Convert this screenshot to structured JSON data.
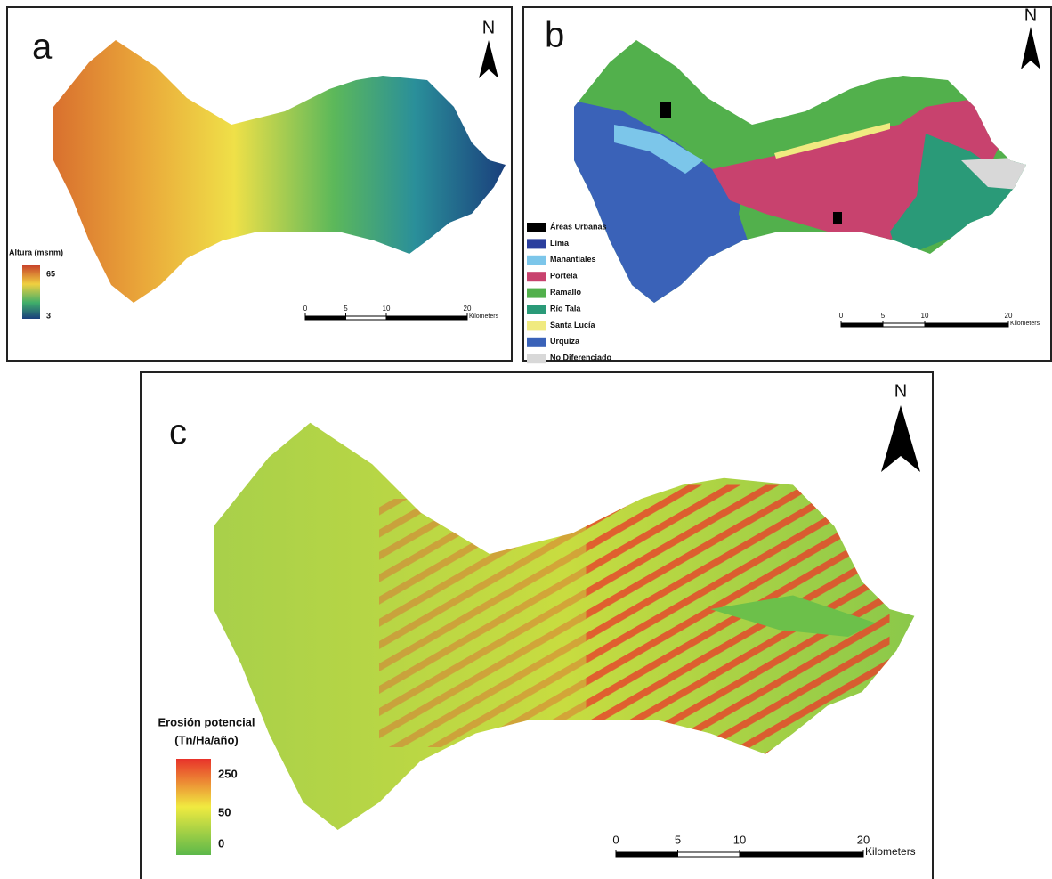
{
  "panels": [
    {
      "label": "a",
      "north": "N",
      "legend": {
        "title": [
          "Altura (msnm)"
        ],
        "max": 65,
        "min": 3
      },
      "scale_bar": {
        "ticks": [
          0,
          5,
          10,
          20
        ],
        "unit": "Kilometers"
      }
    },
    {
      "label": "b",
      "north": "N",
      "legend": {
        "items": [
          {
            "label": "Áreas Urbanas",
            "color": "#000000"
          },
          {
            "label": "Lima",
            "color": "#2b3f9e"
          },
          {
            "label": "Manantiales",
            "color": "#7cc6ea"
          },
          {
            "label": "Portela",
            "color": "#c8426e"
          },
          {
            "label": "Ramallo",
            "color": "#52b04c"
          },
          {
            "label": "Río Tala",
            "color": "#2a9a78"
          },
          {
            "label": "Santa Lucía",
            "color": "#f0ea80"
          },
          {
            "label": "Urquiza",
            "color": "#3a62b8"
          },
          {
            "label": "No Diferenciado",
            "color": "#d8d8d8"
          }
        ]
      },
      "scale_bar": {
        "ticks": [
          0,
          5,
          10,
          20
        ],
        "unit": "Kilometers"
      }
    },
    {
      "label": "c",
      "north": "N",
      "legend": {
        "title": [
          "Erosión potencial",
          "(Tn/Ha/año)"
        ],
        "max": 250,
        "mid": 50,
        "min": 0
      },
      "scale_bar": {
        "ticks": [
          0,
          5,
          10,
          20
        ],
        "unit": "Kilometers"
      }
    }
  ]
}
